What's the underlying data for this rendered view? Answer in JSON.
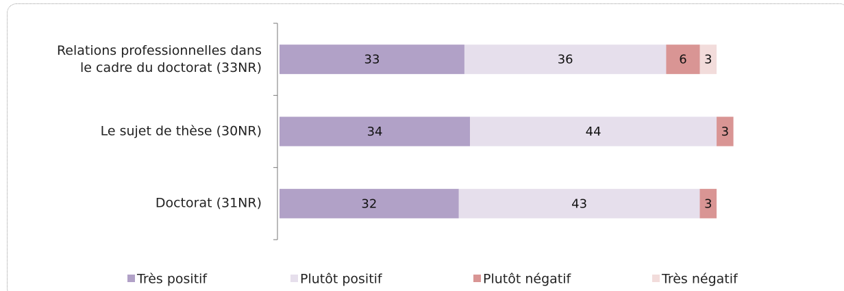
{
  "chart_data": {
    "type": "stacked-barh",
    "categories": [
      "Relations professionnelles dans\nle cadre du doctorat (33NR)",
      "Le sujet de thèse (30NR)",
      "Doctorat  (31NR)"
    ],
    "series": [
      {
        "name": "Très positif",
        "color": "#b1a1c7",
        "values": [
          33,
          34,
          32
        ]
      },
      {
        "name": "Plutôt positif",
        "color": "#e6dfec",
        "values": [
          36,
          44,
          43
        ]
      },
      {
        "name": "Plutôt négatif",
        "color": "#d99594",
        "values": [
          6,
          3,
          3
        ]
      },
      {
        "name": "Très négatif",
        "color": "#f2dcdb",
        "values": [
          3,
          null,
          null
        ]
      }
    ],
    "xlim": [
      0,
      100
    ],
    "legend": "bottom"
  }
}
